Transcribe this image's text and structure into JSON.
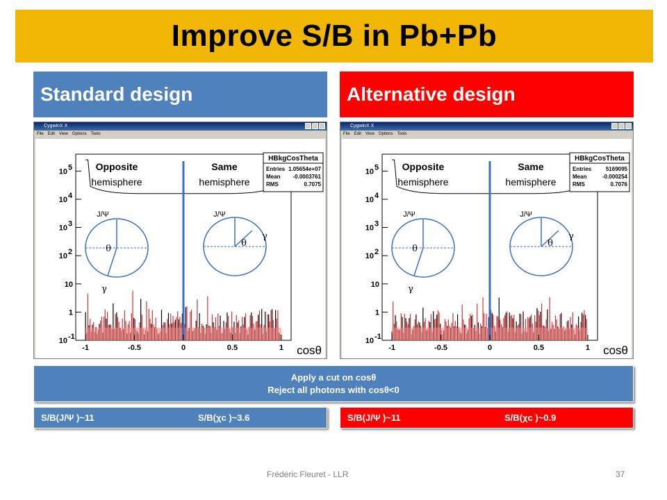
{
  "title": "Improve S/B in Pb+Pb",
  "panels": [
    {
      "id": "std",
      "header": "Standard design",
      "window_title": "CygwinX X",
      "menu": [
        "File",
        "Edit",
        "View",
        "Options",
        "Tools"
      ],
      "stats": {
        "title": "HBkgCosTheta",
        "rows": [
          [
            "Entries",
            "1.05654e+07"
          ],
          [
            "Mean",
            "-0.0003761"
          ],
          [
            "RMS",
            "0.7075"
          ]
        ]
      },
      "opposite": [
        "Opposite",
        "hemisphere"
      ],
      "same": [
        "Same",
        "hemisphere"
      ],
      "jpsi": "J/Ψ",
      "theta": "θ",
      "gamma": "γ",
      "xlabel": "cosθ",
      "sb_jpsi": "S/B(J/Ψ )~11",
      "sb_chic": "S/B(χc )~3.6"
    },
    {
      "id": "alt",
      "header": "Alternative design",
      "window_title": "CygwinX X",
      "menu": [
        "File",
        "Edit",
        "View",
        "Options",
        "Tools"
      ],
      "stats": {
        "title": "HBkgCosTheta",
        "rows": [
          [
            "Entries",
            "5169095"
          ],
          [
            "Mean",
            "-0.000254"
          ],
          [
            "RMS",
            "0.7076"
          ]
        ]
      },
      "opposite": [
        "Opposite",
        "hemisphere"
      ],
      "same": [
        "Same",
        "hemisphere"
      ],
      "jpsi": "J/Ψ",
      "theta": "θ",
      "gamma": "γ",
      "xlabel": "cosθ",
      "sb_jpsi": "S/B(J/Ψ )~11",
      "sb_chic": "S/B(χc )~0.9"
    }
  ],
  "chart_data": {
    "type": "bar",
    "xlim": [
      -1.1,
      1.1
    ],
    "ylim_log10": [
      -1,
      5.6
    ],
    "log_y": true,
    "xticks": [
      "-1",
      "-0.5",
      "0",
      "0.5",
      "1"
    ],
    "yticks": [
      "10-1",
      "1",
      "10",
      "102",
      "103",
      "104",
      "105"
    ]
  },
  "cut": {
    "line1": "Apply a cut on cosθ",
    "line2": "Reject all photons with cosθ<0"
  },
  "footer": {
    "author": "Frédéric Fleuret - LLR",
    "page": "37"
  },
  "colors": {
    "title_bg": "#f2b705",
    "std": "#4f81bd",
    "alt": "#ff0000"
  }
}
